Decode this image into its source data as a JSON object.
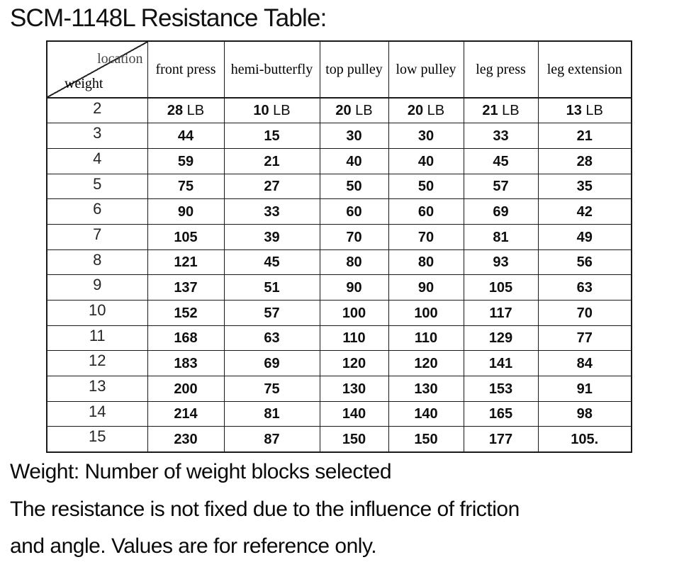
{
  "page_title": "SCM-1148L Resistance Table:",
  "table": {
    "corner": {
      "top_label": "location",
      "bottom_label": "weight"
    },
    "columns": [
      "front press",
      "hemi-butterfly",
      "top pulley",
      "low pulley",
      "leg press",
      "leg extension"
    ],
    "rows": [
      {
        "weight": "2",
        "unit": "LB",
        "values": [
          "28",
          "10",
          "20",
          "20",
          "21",
          "13"
        ]
      },
      {
        "weight": "3",
        "values": [
          "44",
          "15",
          "30",
          "30",
          "33",
          "21"
        ]
      },
      {
        "weight": "4",
        "values": [
          "59",
          "21",
          "40",
          "40",
          "45",
          "28"
        ]
      },
      {
        "weight": "5",
        "values": [
          "75",
          "27",
          "50",
          "50",
          "57",
          "35"
        ]
      },
      {
        "weight": "6",
        "values": [
          "90",
          "33",
          "60",
          "60",
          "69",
          "42"
        ]
      },
      {
        "weight": "7",
        "values": [
          "105",
          "39",
          "70",
          "70",
          "81",
          "49"
        ]
      },
      {
        "weight": "8",
        "values": [
          "121",
          "45",
          "80",
          "80",
          "93",
          "56"
        ]
      },
      {
        "weight": "9",
        "values": [
          "137",
          "51",
          "90",
          "90",
          "105",
          "63"
        ]
      },
      {
        "weight": "10",
        "values": [
          "152",
          "57",
          "100",
          "100",
          "117",
          "70"
        ]
      },
      {
        "weight": "11",
        "values": [
          "168",
          "63",
          "110",
          "110",
          "129",
          "77"
        ]
      },
      {
        "weight": "12",
        "values": [
          "183",
          "69",
          "120",
          "120",
          "141",
          "84"
        ]
      },
      {
        "weight": "13",
        "values": [
          "200",
          "75",
          "130",
          "130",
          "153",
          "91"
        ]
      },
      {
        "weight": "14",
        "values": [
          "214",
          "81",
          "140",
          "140",
          "165",
          "98"
        ]
      },
      {
        "weight": "15",
        "values": [
          "230",
          "87",
          "150",
          "150",
          "177",
          "105."
        ]
      }
    ]
  },
  "notes": [
    "Weight: Number of weight blocks selected",
    "The resistance is not fixed due to the influence of friction",
    "and angle. Values are for reference only."
  ],
  "colors": {
    "text": "#000000",
    "corner_top_label": "#464646",
    "border": "#1a1a1a",
    "background": "#ffffff"
  }
}
